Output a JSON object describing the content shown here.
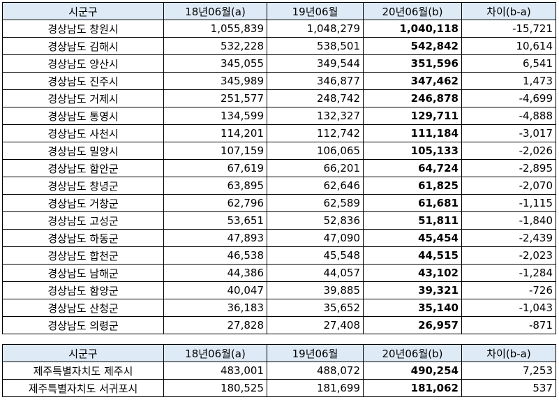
{
  "headers": [
    "시군구",
    "18년06월(a)",
    "19년06월",
    "20년06월(b)",
    "차이(b-a)"
  ],
  "table1": [
    [
      "경상남도 창원시",
      "1,055,839",
      "1,048,279",
      "1,040,118",
      "-15,721"
    ],
    [
      "경상남도 김해시",
      "532,228",
      "538,501",
      "542,842",
      "10,614"
    ],
    [
      "경상남도 양산시",
      "345,055",
      "349,544",
      "351,596",
      "6,541"
    ],
    [
      "경상남도 진주시",
      "345,989",
      "346,877",
      "347,462",
      "1,473"
    ],
    [
      "경상남도 거제시",
      "251,577",
      "248,742",
      "246,878",
      "-4,699"
    ],
    [
      "경상남도 통영시",
      "134,599",
      "132,327",
      "129,711",
      "-4,888"
    ],
    [
      "경상남도 사천시",
      "114,201",
      "112,742",
      "111,184",
      "-3,017"
    ],
    [
      "경상남도 밀양시",
      "107,159",
      "106,065",
      "105,133",
      "-2,026"
    ],
    [
      "경상남도 함안군",
      "67,619",
      "66,201",
      "64,724",
      "-2,895"
    ],
    [
      "경상남도 창녕군",
      "63,895",
      "62,646",
      "61,825",
      "-2,070"
    ],
    [
      "경상남도 거창군",
      "62,796",
      "62,589",
      "61,681",
      "-1,115"
    ],
    [
      "경상남도 고성군",
      "53,651",
      "52,836",
      "51,811",
      "-1,840"
    ],
    [
      "경상남도 하동군",
      "47,893",
      "47,090",
      "45,454",
      "-2,439"
    ],
    [
      "경상남도 합천군",
      "46,538",
      "45,548",
      "44,515",
      "-2,023"
    ],
    [
      "경상남도 남해군",
      "44,386",
      "44,057",
      "43,102",
      "-1,284"
    ],
    [
      "경상남도 함양군",
      "40,047",
      "39,885",
      "39,321",
      "-726"
    ],
    [
      "경상남도 산청군",
      "36,183",
      "35,652",
      "35,140",
      "-1,043"
    ],
    [
      "경상남도 의령군",
      "27,828",
      "27,408",
      "26,957",
      "-871"
    ]
  ],
  "table2": [
    [
      "제주특별자치도 제주시",
      "483,001",
      "488,072",
      "490,254",
      "7,253"
    ],
    [
      "제주특별자치도 서귀포시",
      "180,525",
      "181,699",
      "181,062",
      "537"
    ]
  ]
}
